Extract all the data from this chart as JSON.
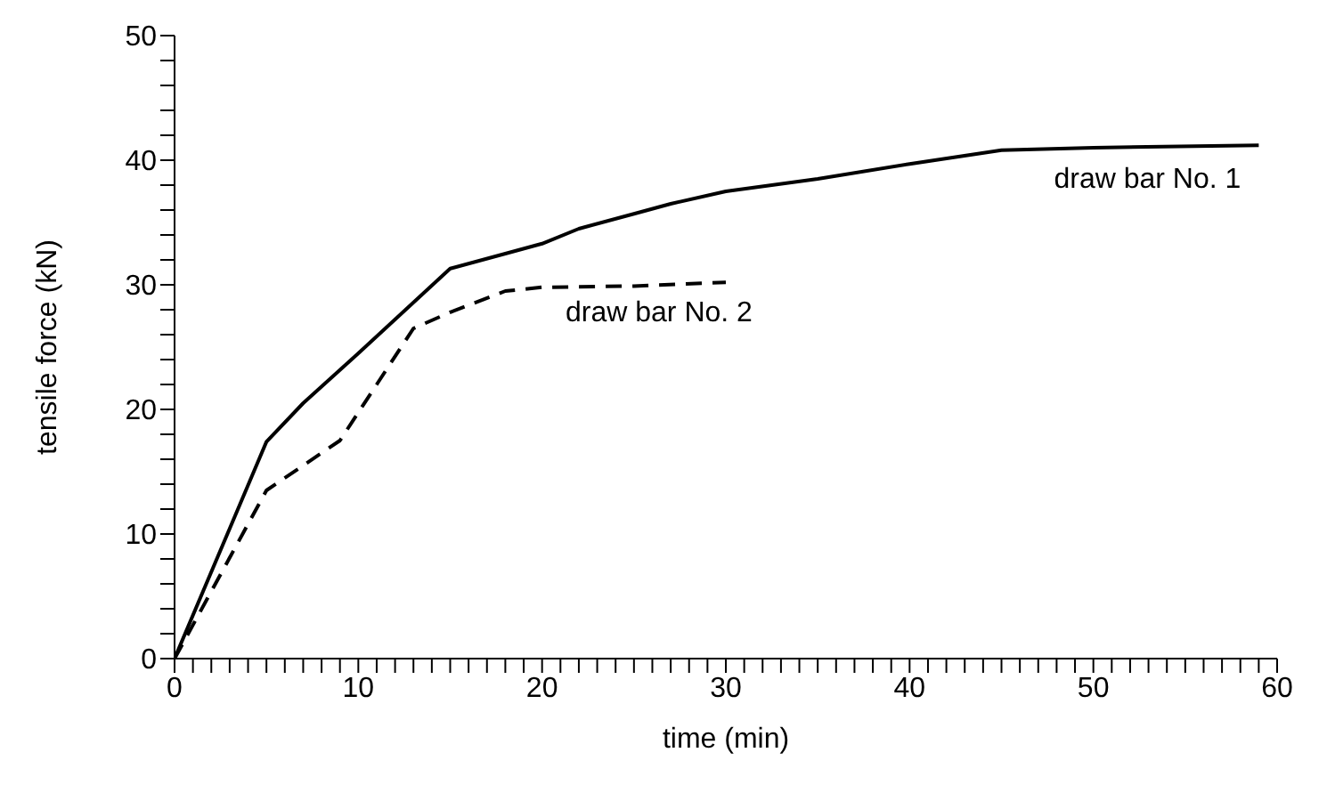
{
  "chart_data": {
    "type": "line",
    "xlabel": "time  (min)",
    "ylabel": "tensile force  (kN)",
    "xlim": [
      0,
      60
    ],
    "ylim": [
      0,
      50
    ],
    "xticks": [
      0,
      {
        "value": 1,
        "label": null
      },
      {
        "value": 2,
        "label": null
      },
      {
        "value": 3,
        "label": null
      },
      {
        "value": 4,
        "label": null
      },
      {
        "value": 5,
        "label": null
      },
      {
        "value": 6,
        "label": null
      },
      {
        "value": 7,
        "label": null
      },
      {
        "value": 8,
        "label": null
      },
      {
        "value": 9,
        "label": null
      },
      10,
      {
        "value": 11,
        "label": null
      },
      {
        "value": 12,
        "label": null
      },
      {
        "value": 13,
        "label": null
      },
      {
        "value": 14,
        "label": null
      },
      {
        "value": 15,
        "label": null
      },
      {
        "value": 16,
        "label": null
      },
      {
        "value": 17,
        "label": null
      },
      {
        "value": 18,
        "label": null
      },
      {
        "value": 19,
        "label": null
      },
      20,
      {
        "value": 21,
        "label": null
      },
      {
        "value": 22,
        "label": null
      },
      {
        "value": 23,
        "label": null
      },
      {
        "value": 24,
        "label": null
      },
      {
        "value": 25,
        "label": null
      },
      {
        "value": 26,
        "label": null
      },
      {
        "value": 27,
        "label": null
      },
      {
        "value": 28,
        "label": null
      },
      {
        "value": 29,
        "label": null
      },
      30,
      {
        "value": 31,
        "label": null
      },
      {
        "value": 32,
        "label": null
      },
      {
        "value": 33,
        "label": null
      },
      {
        "value": 34,
        "label": null
      },
      {
        "value": 35,
        "label": null
      },
      {
        "value": 36,
        "label": null
      },
      {
        "value": 37,
        "label": null
      },
      {
        "value": 38,
        "label": null
      },
      {
        "value": 39,
        "label": null
      },
      40,
      {
        "value": 41,
        "label": null
      },
      {
        "value": 42,
        "label": null
      },
      {
        "value": 43,
        "label": null
      },
      {
        "value": 44,
        "label": null
      },
      {
        "value": 45,
        "label": null
      },
      {
        "value": 46,
        "label": null
      },
      {
        "value": 47,
        "label": null
      },
      {
        "value": 48,
        "label": null
      },
      {
        "value": 49,
        "label": null
      },
      50,
      {
        "value": 51,
        "label": null
      },
      {
        "value": 52,
        "label": null
      },
      {
        "value": 53,
        "label": null
      },
      {
        "value": 54,
        "label": null
      },
      {
        "value": 55,
        "label": null
      },
      {
        "value": 56,
        "label": null
      },
      {
        "value": 57,
        "label": null
      },
      {
        "value": 58,
        "label": null
      },
      {
        "value": 59,
        "label": null
      },
      60
    ],
    "yticks": [
      0,
      {
        "value": 2,
        "label": null
      },
      {
        "value": 4,
        "label": null
      },
      {
        "value": 6,
        "label": null
      },
      {
        "value": 8,
        "label": null
      },
      10,
      {
        "value": 12,
        "label": null
      },
      {
        "value": 14,
        "label": null
      },
      {
        "value": 16,
        "label": null
      },
      {
        "value": 18,
        "label": null
      },
      20,
      {
        "value": 22,
        "label": null
      },
      {
        "value": 24,
        "label": null
      },
      {
        "value": 26,
        "label": null
      },
      {
        "value": 28,
        "label": null
      },
      30,
      {
        "value": 32,
        "label": null
      },
      {
        "value": 34,
        "label": null
      },
      {
        "value": 36,
        "label": null
      },
      {
        "value": 38,
        "label": null
      },
      40,
      {
        "value": 42,
        "label": null
      },
      {
        "value": 44,
        "label": null
      },
      {
        "value": 46,
        "label": null
      },
      {
        "value": 48,
        "label": null
      },
      50
    ],
    "grid": false,
    "legend": false,
    "marker": "none",
    "series": [
      {
        "name": "draw bar No. 1",
        "color": "#000000",
        "line_style": "solid",
        "x": [
          0,
          5,
          7,
          10,
          15,
          18,
          20,
          22,
          25,
          27,
          30,
          35,
          40,
          45,
          50,
          59
        ],
        "values": [
          0,
          17.4,
          20.5,
          24.5,
          31.3,
          32.5,
          33.3,
          34.5,
          35.7,
          36.5,
          37.5,
          38.5,
          39.7,
          40.8,
          41,
          41.2
        ]
      },
      {
        "name": "draw bar No. 2",
        "color": "#000000",
        "line_style": "dashed",
        "x": [
          0,
          5,
          7,
          9,
          11,
          13,
          15,
          18,
          20,
          25,
          30
        ],
        "values": [
          0,
          13.5,
          15.5,
          17.5,
          22,
          26.5,
          27.8,
          29.5,
          29.8,
          29.9,
          30.2
        ]
      }
    ]
  }
}
